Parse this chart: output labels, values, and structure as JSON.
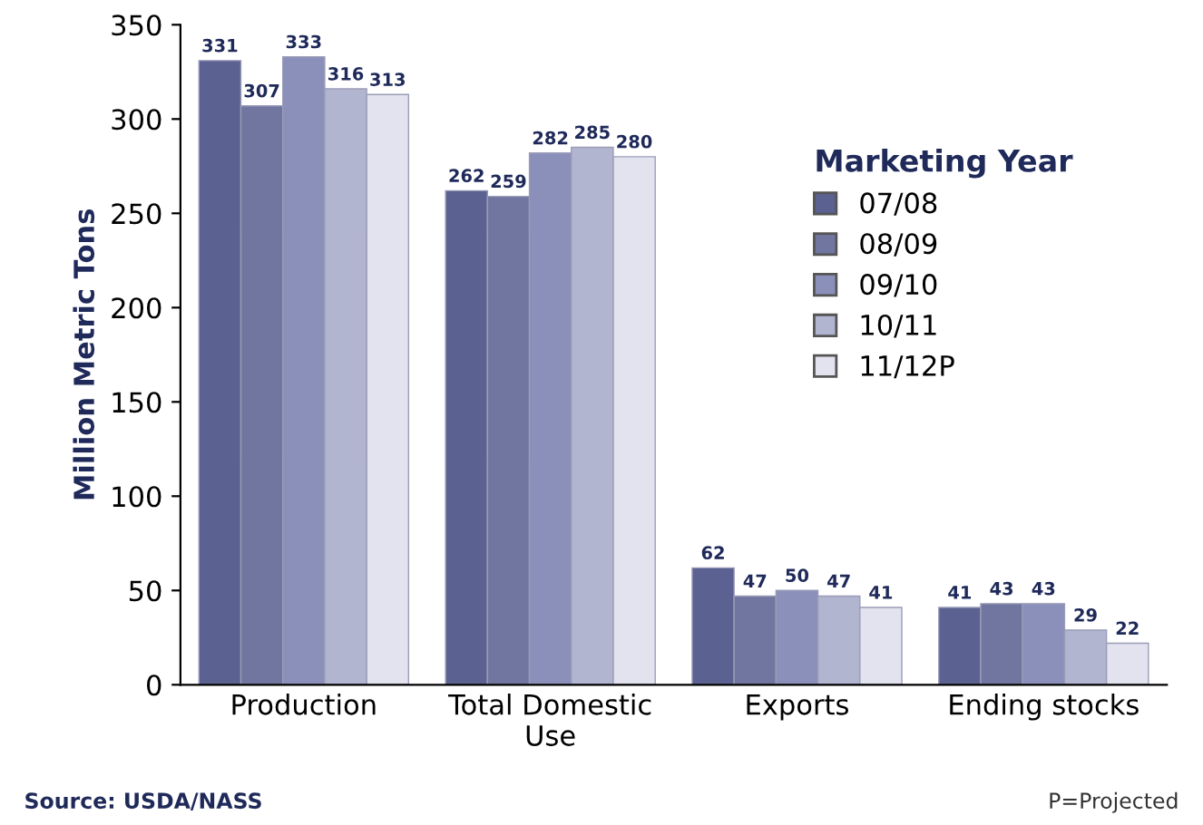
{
  "chart_data": {
    "type": "bar",
    "ylabel": "Million Metric Tons",
    "legend_title": "Marketing Year",
    "categories": [
      "Production",
      "Total Domestic\nUse",
      "Exports",
      "Ending stocks"
    ],
    "series": [
      {
        "name": "07/08",
        "color": "#5b6190",
        "values": [
          331,
          262,
          62,
          41
        ]
      },
      {
        "name": "08/09",
        "color": "#70769f",
        "values": [
          307,
          259,
          47,
          43
        ]
      },
      {
        "name": "09/10",
        "color": "#8b90ba",
        "values": [
          333,
          282,
          50,
          43
        ]
      },
      {
        "name": "10/11",
        "color": "#b2b5d0",
        "values": [
          316,
          285,
          47,
          29
        ]
      },
      {
        "name": "11/12P",
        "color": "#e2e3ee",
        "values": [
          313,
          280,
          41,
          22
        ]
      }
    ],
    "ylim": [
      0,
      350
    ],
    "yticks": [
      0,
      50,
      100,
      150,
      200,
      250,
      300,
      350
    ],
    "data_labels": true,
    "grid": false,
    "legend": "top right",
    "annotations": [
      "Source: USDA/NASS",
      "P=Projected"
    ]
  }
}
